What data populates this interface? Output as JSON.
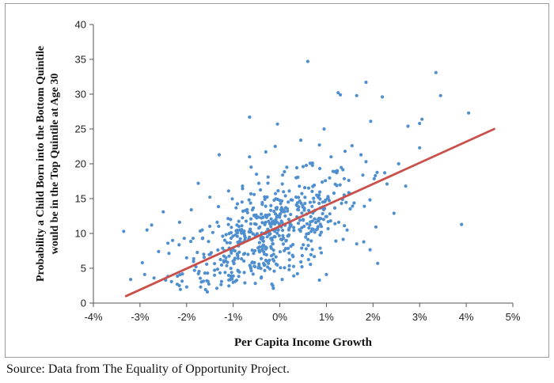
{
  "source_note": "Source: Data from The Equality of Opportunity Project.",
  "colors": {
    "points": "#4f8fcf",
    "trendline": "#c9504b",
    "axis": "#555555"
  },
  "chart_data": {
    "type": "scatter",
    "xlabel": "Per Capita Income Growth",
    "ylabel_lines": [
      "Probability a Child Born into the Bottom Quintile",
      "would be in the Top Quintile at Age 30"
    ],
    "xlim": [
      -4,
      5
    ],
    "ylim": [
      0,
      40
    ],
    "x_ticks": [
      -4,
      -3,
      -2,
      -1,
      0,
      1,
      2,
      3,
      4,
      5
    ],
    "x_tick_labels": [
      "-4%",
      "-3%",
      "-2%",
      "-1%",
      "0%",
      "1%",
      "2%",
      "3%",
      "4%",
      "5%"
    ],
    "y_ticks": [
      0,
      5,
      10,
      15,
      20,
      25,
      30,
      35,
      40
    ],
    "y_tick_labels": [
      "0",
      "5",
      "10",
      "15",
      "20",
      "25",
      "30",
      "35",
      "40"
    ],
    "trendline": {
      "x": [
        -3.3,
        4.6
      ],
      "y": [
        1.0,
        25.0
      ]
    },
    "points": [
      [
        -3.35,
        10.3
      ],
      [
        -2.85,
        10.5
      ],
      [
        -2.75,
        11.2
      ],
      [
        -2.5,
        13.1
      ],
      [
        -2.3,
        9.0
      ],
      [
        -2.05,
        9.3
      ],
      [
        -1.75,
        17.2
      ],
      [
        -1.3,
        21.3
      ],
      [
        -0.65,
        26.7
      ],
      [
        -0.65,
        21.0
      ],
      [
        -0.5,
        18.5
      ],
      [
        -0.3,
        21.7
      ],
      [
        -0.1,
        22.5
      ],
      [
        -0.05,
        25.7
      ],
      [
        0.45,
        23.4
      ],
      [
        0.6,
        34.7
      ],
      [
        0.95,
        25.0
      ],
      [
        1.25,
        30.2
      ],
      [
        1.3,
        29.9
      ],
      [
        1.65,
        29.8
      ],
      [
        1.85,
        31.7
      ],
      [
        1.95,
        26.1
      ],
      [
        2.2,
        29.6
      ],
      [
        3.0,
        25.8
      ],
      [
        3.05,
        26.4
      ],
      [
        3.35,
        33.1
      ],
      [
        3.45,
        29.8
      ],
      [
        4.05,
        27.3
      ],
      [
        3.9,
        11.3
      ],
      [
        3.0,
        22.3
      ],
      [
        2.75,
        25.4
      ],
      [
        2.55,
        20.0
      ],
      [
        2.7,
        16.8
      ],
      [
        2.45,
        12.9
      ],
      [
        2.3,
        17.1
      ],
      [
        2.1,
        5.7
      ],
      [
        1.8,
        8.8
      ],
      [
        1.65,
        8.5
      ],
      [
        1.0,
        4.1
      ],
      [
        0.85,
        3.3
      ],
      [
        0.2,
        4.8
      ],
      [
        0.3,
        3.9
      ],
      [
        0.05,
        3.4
      ],
      [
        -2.9,
        4.1
      ],
      [
        -2.7,
        3.6
      ],
      [
        -2.45,
        3.3
      ],
      [
        -2.2,
        2.7
      ],
      [
        -3.2,
        3.4
      ],
      [
        1.85,
        20.3
      ],
      [
        2.25,
        18.7
      ],
      [
        2.05,
        18.3
      ],
      [
        1.55,
        22.6
      ],
      [
        1.4,
        21.8
      ],
      [
        0.85,
        22.7
      ],
      [
        1.1,
        21.0
      ],
      [
        0.7,
        20.1
      ],
      [
        0.5,
        19.6
      ],
      [
        0.35,
        18.0
      ],
      [
        0.15,
        19.5
      ],
      [
        -0.25,
        18.1
      ],
      [
        -0.45,
        17.2
      ],
      [
        -0.8,
        16.8
      ],
      [
        -1.1,
        16.1
      ],
      [
        -1.5,
        15.2
      ],
      [
        -1.9,
        13.4
      ],
      [
        -2.15,
        11.6
      ],
      [
        -2.4,
        8.6
      ],
      [
        -2.6,
        7.4
      ],
      [
        -2.95,
        5.8
      ],
      [
        -1.8,
        5.2
      ],
      [
        -1.55,
        4.3
      ],
      [
        -1.25,
        3.1
      ],
      [
        -0.75,
        2.9
      ],
      [
        -0.4,
        3.6
      ],
      [
        -0.15,
        2.5
      ],
      [
        -1.4,
        4.0
      ],
      [
        -2.0,
        6.5
      ],
      [
        -1.2,
        5.9
      ],
      [
        -0.9,
        4.7
      ],
      [
        -0.55,
        5.3
      ]
    ],
    "point_cloud": {
      "count": 540,
      "seed": 12345,
      "cluster": {
        "x_mean": -0.2,
        "x_sd": 0.95,
        "intercept": 10.5,
        "slope": 2.9,
        "noise_sd": 3.3
      },
      "x_range": [
        -2.6,
        2.3
      ],
      "y_range": [
        1.5,
        22
      ]
    }
  }
}
